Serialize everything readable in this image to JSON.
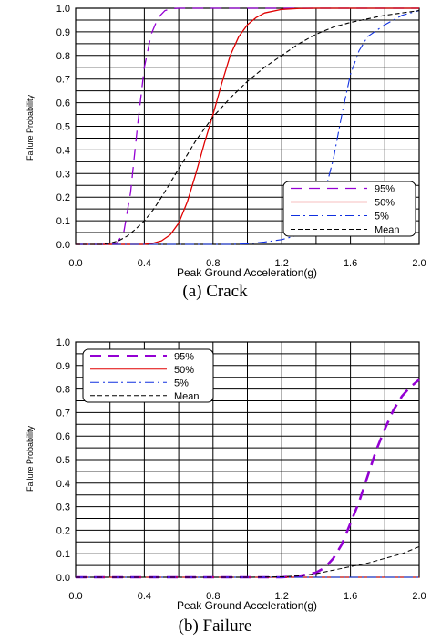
{
  "chart_data": [
    {
      "type": "line",
      "caption": "(a) Crack",
      "xlabel": "Peak Ground Acceleration(g)",
      "ylabel": "Failure Probability",
      "xlim": [
        0.0,
        2.0
      ],
      "ylim": [
        0.0,
        1.0
      ],
      "xticks": [
        "0.0",
        "0.4",
        "0.8",
        "1.2",
        "1.6",
        "2.0"
      ],
      "yticks": [
        "0.0",
        "0.1",
        "0.2",
        "0.3",
        "0.4",
        "0.5",
        "0.6",
        "0.7",
        "0.8",
        "0.9",
        "1.0"
      ],
      "grid": true,
      "legend_position": "lower-right",
      "series": [
        {
          "name": "95%",
          "color": "#9400d3",
          "dash": "long-dash",
          "width": 1.3,
          "x": [
            0.0,
            0.2,
            0.24,
            0.28,
            0.32,
            0.36,
            0.4,
            0.44,
            0.48,
            0.52,
            0.56,
            0.6,
            0.7,
            0.8,
            1.0,
            1.5,
            2.0
          ],
          "y": [
            0.0,
            0.0,
            0.005,
            0.05,
            0.22,
            0.5,
            0.75,
            0.89,
            0.96,
            0.99,
            0.998,
            1.0,
            1.0,
            1.0,
            1.0,
            1.0,
            1.0
          ]
        },
        {
          "name": "50%",
          "color": "#e00000",
          "dash": "solid",
          "width": 1.3,
          "x": [
            0.0,
            0.4,
            0.45,
            0.5,
            0.55,
            0.6,
            0.65,
            0.7,
            0.75,
            0.8,
            0.85,
            0.9,
            0.95,
            1.0,
            1.05,
            1.1,
            1.2,
            1.3,
            1.4,
            1.6,
            2.0
          ],
          "y": [
            0.0,
            0.0,
            0.005,
            0.015,
            0.04,
            0.09,
            0.18,
            0.3,
            0.43,
            0.55,
            0.68,
            0.8,
            0.88,
            0.93,
            0.96,
            0.98,
            0.995,
            0.999,
            1.0,
            1.0,
            1.0
          ]
        },
        {
          "name": "5%",
          "color": "#1030e0",
          "dash": "dash-dot",
          "width": 1.1,
          "x": [
            0.0,
            0.9,
            1.0,
            1.1,
            1.2,
            1.3,
            1.35,
            1.4,
            1.45,
            1.5,
            1.55,
            1.6,
            1.65,
            1.7,
            1.8,
            1.9,
            2.0
          ],
          "y": [
            0.0,
            0.0,
            0.002,
            0.01,
            0.02,
            0.04,
            0.07,
            0.12,
            0.22,
            0.36,
            0.55,
            0.72,
            0.82,
            0.88,
            0.93,
            0.97,
            0.99
          ]
        },
        {
          "name": "Mean",
          "color": "#000000",
          "dash": "short-dash",
          "width": 1.1,
          "x": [
            0.0,
            0.15,
            0.2,
            0.25,
            0.3,
            0.35,
            0.4,
            0.45,
            0.5,
            0.55,
            0.6,
            0.65,
            0.7,
            0.75,
            0.8,
            0.9,
            1.0,
            1.1,
            1.2,
            1.3,
            1.4,
            1.5,
            1.6,
            1.8,
            2.0
          ],
          "y": [
            0.0,
            0.0,
            0.005,
            0.015,
            0.035,
            0.065,
            0.1,
            0.145,
            0.2,
            0.26,
            0.32,
            0.38,
            0.44,
            0.49,
            0.54,
            0.62,
            0.69,
            0.75,
            0.8,
            0.85,
            0.89,
            0.92,
            0.94,
            0.97,
            0.99
          ]
        }
      ]
    },
    {
      "type": "line",
      "caption": "(b) Failure",
      "xlabel": "Peak Ground Acceleration(g)",
      "ylabel": "Failure Probability",
      "xlim": [
        0.0,
        2.0
      ],
      "ylim": [
        0.0,
        1.0
      ],
      "xticks": [
        "0.0",
        "0.4",
        "0.8",
        "1.2",
        "1.6",
        "2.0"
      ],
      "yticks": [
        "0.0",
        "0.1",
        "0.2",
        "0.3",
        "0.4",
        "0.5",
        "0.6",
        "0.7",
        "0.8",
        "0.9",
        "1.0"
      ],
      "grid": true,
      "legend_position": "upper-left",
      "series": [
        {
          "name": "95%",
          "color": "#9400d3",
          "dash": "long-dash",
          "width": 2.6,
          "x": [
            0.0,
            1.2,
            1.3,
            1.4,
            1.45,
            1.5,
            1.55,
            1.6,
            1.65,
            1.7,
            1.75,
            1.8,
            1.85,
            1.9,
            1.95,
            2.0
          ],
          "y": [
            0.0,
            0.0,
            0.005,
            0.02,
            0.04,
            0.08,
            0.14,
            0.23,
            0.32,
            0.43,
            0.54,
            0.63,
            0.71,
            0.77,
            0.81,
            0.84
          ]
        },
        {
          "name": "50%",
          "color": "#e00000",
          "dash": "solid",
          "width": 1.1,
          "x": [
            0.0,
            2.0
          ],
          "y": [
            0.0,
            0.0
          ]
        },
        {
          "name": "5%",
          "color": "#1030e0",
          "dash": "dash-dot",
          "width": 1.1,
          "x": [
            0.0,
            2.0
          ],
          "y": [
            0.0,
            0.0
          ]
        },
        {
          "name": "Mean",
          "color": "#000000",
          "dash": "short-dash",
          "width": 1.0,
          "x": [
            0.0,
            1.0,
            1.2,
            1.3,
            1.4,
            1.5,
            1.6,
            1.7,
            1.8,
            1.9,
            2.0
          ],
          "y": [
            0.0,
            0.0,
            0.002,
            0.006,
            0.015,
            0.03,
            0.045,
            0.06,
            0.08,
            0.1,
            0.13
          ]
        }
      ]
    }
  ]
}
